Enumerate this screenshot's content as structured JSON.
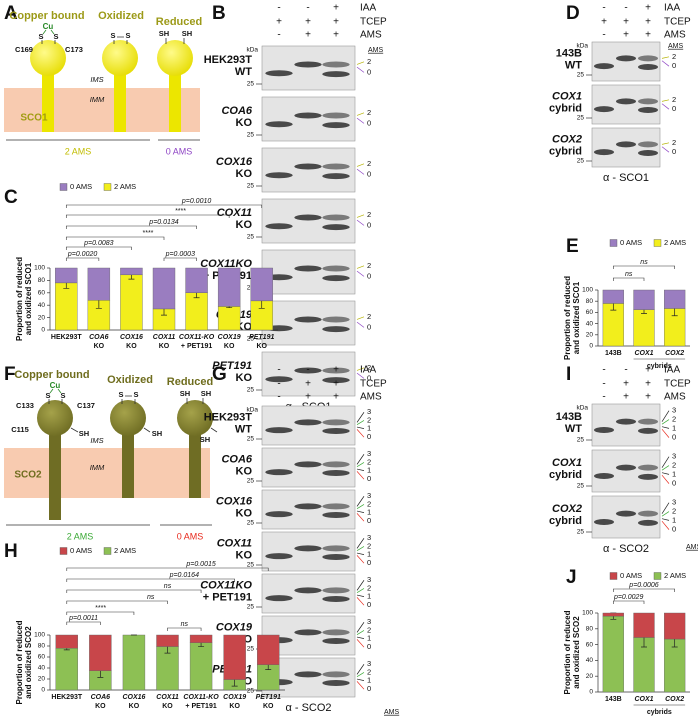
{
  "panel_letters": [
    "A",
    "B",
    "C",
    "D",
    "E",
    "F",
    "G",
    "H",
    "I",
    "J"
  ],
  "diagrams": [
    {
      "states": [
        "Copper bound",
        "Oxidized",
        "Reduced"
      ],
      "cu": "Cu",
      "copper_thiols": [
        "S",
        "S"
      ],
      "residues": [
        "C169",
        "C173"
      ],
      "oxidized_thiols": [
        "S",
        "S"
      ],
      "reduced_thiols": [
        "SH",
        "SH"
      ],
      "compartments": [
        "IMS",
        "IMM"
      ],
      "protein": "SCO1",
      "results": [
        "2 AMS",
        "0 AMS"
      ]
    },
    {
      "states": [
        "Copper bound",
        "Oxidized",
        "Reduced"
      ],
      "cu": "Cu",
      "copper_thiols": [
        "S",
        "S",
        "SH"
      ],
      "residues": [
        "C133",
        "C137",
        "C115"
      ],
      "oxidized_thiols": [
        "S",
        "S",
        "SH"
      ],
      "reduced_thiols": [
        "SH",
        "SH",
        "SH"
      ],
      "compartments": [
        "IMS",
        "IMM"
      ],
      "protein": "SCO2",
      "results": [
        "2 AMS",
        "0 AMS"
      ]
    }
  ],
  "blots": [
    {
      "treatments": [
        {
          "name": "IAA",
          "signs": [
            "-",
            "-",
            "+"
          ]
        },
        {
          "name": "TCEP",
          "signs": [
            "+",
            "+",
            "+"
          ]
        },
        {
          "name": "AMS",
          "signs": [
            "-",
            "+",
            "+"
          ]
        }
      ],
      "marker_unit": "kDa",
      "marker": "25",
      "band_header": "AMS",
      "antibody": "α - SCO1",
      "band_states": [
        {
          "label": "2",
          "color": "#b5b200"
        },
        {
          "label": "0",
          "color": "#8e44c4"
        }
      ],
      "samples": [
        [
          "HEK293T",
          "WT"
        ],
        [
          "COA6",
          "KO"
        ],
        [
          "COX16",
          "KO"
        ],
        [
          "COX11",
          "KO"
        ],
        [
          "COX11KO",
          "+ PET191"
        ],
        [
          "COX19",
          "KO"
        ],
        [
          "PET191",
          "KO"
        ]
      ]
    },
    {
      "treatments": [
        {
          "name": "IAA",
          "signs": [
            "-",
            "-",
            "+"
          ]
        },
        {
          "name": "TCEP",
          "signs": [
            "+",
            "+",
            "+"
          ]
        },
        {
          "name": "AMS",
          "signs": [
            "-",
            "+",
            "+"
          ]
        }
      ],
      "marker_unit": "kDa",
      "marker": "25",
      "band_header": "AMS",
      "antibody": "α - SCO1",
      "band_states": [
        {
          "label": "2",
          "color": "#b5b200"
        },
        {
          "label": "0",
          "color": "#8e44c4"
        }
      ],
      "samples": [
        [
          "143B",
          "WT"
        ],
        [
          "COX1",
          "cybrid"
        ],
        [
          "COX2",
          "cybrid"
        ]
      ]
    },
    {
      "treatments": [
        {
          "name": "IAA",
          "signs": [
            "-",
            "-",
            "+"
          ]
        },
        {
          "name": "TCEP",
          "signs": [
            "-",
            "+",
            "+"
          ]
        },
        {
          "name": "AMS",
          "signs": [
            "-",
            "+",
            "+"
          ]
        }
      ],
      "marker_unit": "kDa",
      "marker": "25",
      "band_header": "AMS",
      "antibody": "α - SCO2",
      "band_states": [
        {
          "label": "3",
          "color": "#222222"
        },
        {
          "label": "2",
          "color": "#3aa935"
        },
        {
          "label": "1",
          "color": "#222222"
        },
        {
          "label": "0",
          "color": "#e8291c"
        }
      ],
      "samples": [
        [
          "HEK293T",
          "WT"
        ],
        [
          "COA6",
          "KO"
        ],
        [
          "COX16",
          "KO"
        ],
        [
          "COX11",
          "KO"
        ],
        [
          "COX11KO",
          "+ PET191"
        ],
        [
          "COX19",
          "KO"
        ],
        [
          "PET191",
          "KO"
        ]
      ]
    },
    {
      "treatments": [
        {
          "name": "IAA",
          "signs": [
            "-",
            "-",
            "+"
          ]
        },
        {
          "name": "TCEP",
          "signs": [
            "-",
            "+",
            "+"
          ]
        },
        {
          "name": "AMS",
          "signs": [
            "-",
            "+",
            "+"
          ]
        }
      ],
      "marker_unit": "kDa",
      "marker": "25",
      "band_header": "AMS",
      "antibody": "α - SCO2",
      "band_states": [
        {
          "label": "3",
          "color": "#222222"
        },
        {
          "label": "2",
          "color": "#3aa935"
        },
        {
          "label": "1",
          "color": "#222222"
        },
        {
          "label": "0",
          "color": "#e8291c"
        }
      ],
      "samples": [
        [
          "143B",
          "WT"
        ],
        [
          "COX1",
          "cybrid"
        ],
        [
          "COX2",
          "cybrid"
        ]
      ]
    }
  ],
  "chart_data": [
    {
      "type": "stacked_bar",
      "ylabel": [
        "Proportion of reduced",
        "and oxidized SCO1"
      ],
      "categories": [
        [
          "HEK293T"
        ],
        [
          "COA6",
          "KO"
        ],
        [
          "COX16",
          "KO"
        ],
        [
          "COX11",
          "KO"
        ],
        [
          "COX11-KO",
          "+ PET191"
        ],
        [
          "COX19",
          "KO"
        ],
        [
          "PET191",
          "KO"
        ]
      ],
      "series": [
        {
          "name": "2 AMS",
          "color": "#f2ee1c",
          "values": [
            76,
            48,
            89,
            34,
            60,
            38,
            47
          ],
          "errors": [
            9,
            13,
            7,
            10,
            8,
            2,
            12
          ]
        },
        {
          "name": "0 AMS",
          "color": "#9a7dc0",
          "values": [
            24,
            52,
            11,
            66,
            40,
            62,
            53
          ]
        }
      ],
      "ylim": [
        0,
        100
      ],
      "yticks": [
        0,
        20,
        40,
        60,
        80,
        100
      ],
      "annotations": [
        "p=0.0010",
        "****",
        "p=0.0134",
        "****",
        "p=0.0083",
        "p=0.0020",
        "p=0.0003"
      ]
    },
    {
      "type": "stacked_bar",
      "ylabel": [
        "Proportion of reduced",
        "and oxidized SCO1"
      ],
      "categories": [
        [
          "143B"
        ],
        [
          "COX1"
        ],
        [
          "COX2"
        ]
      ],
      "group_label": "cybrids",
      "series": [
        {
          "name": "2 AMS",
          "color": "#f2ee1c",
          "values": [
            76,
            65,
            67
          ],
          "errors": [
            12,
            7,
            13
          ]
        },
        {
          "name": "0 AMS",
          "color": "#9a7dc0",
          "values": [
            24,
            35,
            33
          ]
        }
      ],
      "ylim": [
        0,
        100
      ],
      "yticks": [
        0,
        20,
        40,
        60,
        80,
        100
      ],
      "annotations": [
        "ns",
        "ns"
      ]
    },
    {
      "type": "stacked_bar",
      "ylabel": [
        "Proportion of reduced",
        "and oxidized SCO2"
      ],
      "categories": [
        [
          "HEK293T"
        ],
        [
          "COA6",
          "KO"
        ],
        [
          "COX16",
          "KO"
        ],
        [
          "COX11",
          "KO"
        ],
        [
          "COX11-KO",
          "+ PET191"
        ],
        [
          "COX19",
          "KO"
        ],
        [
          "PET191",
          "KO"
        ]
      ],
      "series": [
        {
          "name": "2 AMS",
          "color": "#8dc054",
          "values": [
            76,
            35,
            100,
            79,
            86,
            19,
            46
          ],
          "errors": [
            3,
            12,
            0,
            12,
            7,
            12,
            9
          ]
        },
        {
          "name": "0 AMS",
          "color": "#c8464a",
          "values": [
            24,
            65,
            0,
            21,
            14,
            81,
            54
          ]
        }
      ],
      "ylim": [
        0,
        100
      ],
      "yticks": [
        0,
        20,
        40,
        60,
        80,
        100
      ],
      "annotations": [
        "p=0.0015",
        "p=0.0164",
        "ns",
        "ns",
        "****",
        "p=0.0011",
        "ns"
      ]
    },
    {
      "type": "stacked_bar",
      "ylabel": [
        "Proportion of reduced",
        "and oxidized SCO2"
      ],
      "categories": [
        [
          "143B"
        ],
        [
          "COX1"
        ],
        [
          "COX2"
        ]
      ],
      "group_label": "cybrids",
      "series": [
        {
          "name": "2 AMS",
          "color": "#8dc054",
          "values": [
            96,
            69,
            67
          ],
          "errors": [
            4,
            12,
            10
          ]
        },
        {
          "name": "0 AMS",
          "color": "#c8464a",
          "values": [
            4,
            31,
            33
          ]
        }
      ],
      "ylim": [
        0,
        100
      ],
      "yticks": [
        0,
        20,
        40,
        60,
        80,
        100
      ],
      "annotations": [
        "p=0.0006",
        "p=0.0029"
      ]
    }
  ]
}
